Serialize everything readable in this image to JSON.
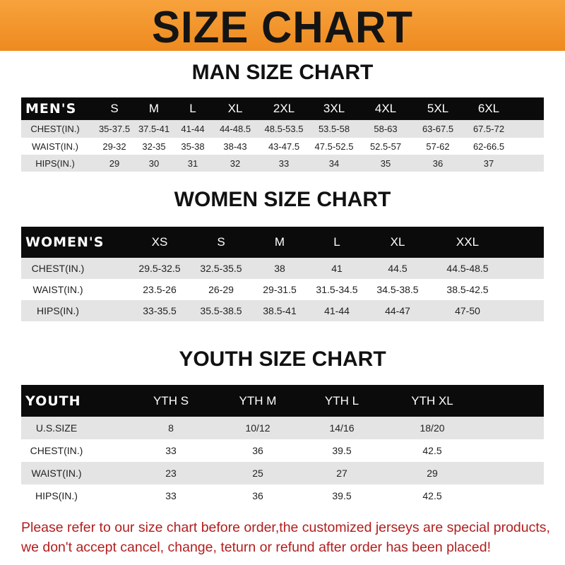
{
  "banner": {
    "title": "SIZE CHART",
    "color": "#f39a2e"
  },
  "men": {
    "title": "MAN SIZE CHART",
    "header": "MEN'S",
    "sizes": [
      "S",
      "M",
      "L",
      "XL",
      "2XL",
      "3XL",
      "4XL",
      "5XL",
      "6XL"
    ],
    "rows": [
      {
        "label": "CHEST(IN.)",
        "values": [
          "35-37.5",
          "37.5-41",
          "41-44",
          "44-48.5",
          "48.5-53.5",
          "53.5-58",
          "58-63",
          "63-67.5",
          "67.5-72"
        ]
      },
      {
        "label": "WAIST(IN.)",
        "values": [
          "29-32",
          "32-35",
          "35-38",
          "38-43",
          "43-47.5",
          "47.5-52.5",
          "52.5-57",
          "57-62",
          "62-66.5"
        ]
      },
      {
        "label": "HIPS(IN.)",
        "values": [
          "29",
          "30",
          "31",
          "32",
          "33",
          "34",
          "35",
          "36",
          "37"
        ]
      }
    ]
  },
  "women": {
    "title": "WOMEN SIZE CHART",
    "header": "WOMEN'S",
    "sizes": [
      "XS",
      "S",
      "M",
      "L",
      "XL",
      "XXL"
    ],
    "rows": [
      {
        "label": "CHEST(IN.)",
        "values": [
          "29.5-32.5",
          "32.5-35.5",
          "38",
          "41",
          "44.5",
          "44.5-48.5"
        ]
      },
      {
        "label": "WAIST(IN.)",
        "values": [
          "23.5-26",
          "26-29",
          "29-31.5",
          "31.5-34.5",
          "34.5-38.5",
          "38.5-42.5"
        ]
      },
      {
        "label": "HIPS(IN.)",
        "values": [
          "33-35.5",
          "35.5-38.5",
          "38.5-41",
          "41-44",
          "44-47",
          "47-50"
        ]
      }
    ]
  },
  "youth": {
    "title": "YOUTH SIZE CHART",
    "header": "YOUTH",
    "sizes": [
      "YTH S",
      "YTH M",
      "YTH L",
      "YTH XL"
    ],
    "rows": [
      {
        "label": "U.S.SIZE",
        "values": [
          "8",
          "10/12",
          "14/16",
          "18/20"
        ]
      },
      {
        "label": "CHEST(IN.)",
        "values": [
          "33",
          "36",
          "39.5",
          "42.5"
        ]
      },
      {
        "label": "WAIST(IN.)",
        "values": [
          "23",
          "25",
          "27",
          "29"
        ]
      },
      {
        "label": "HIPS(IN.)",
        "values": [
          "33",
          "36",
          "39.5",
          "42.5"
        ]
      }
    ]
  },
  "notice": {
    "line1": "Please refer to our size chart before order,the customized jerseys are special products,",
    "line2": "we don't accept cancel, change, teturn or refund after order has been placed!",
    "color": "#b21e1e"
  }
}
